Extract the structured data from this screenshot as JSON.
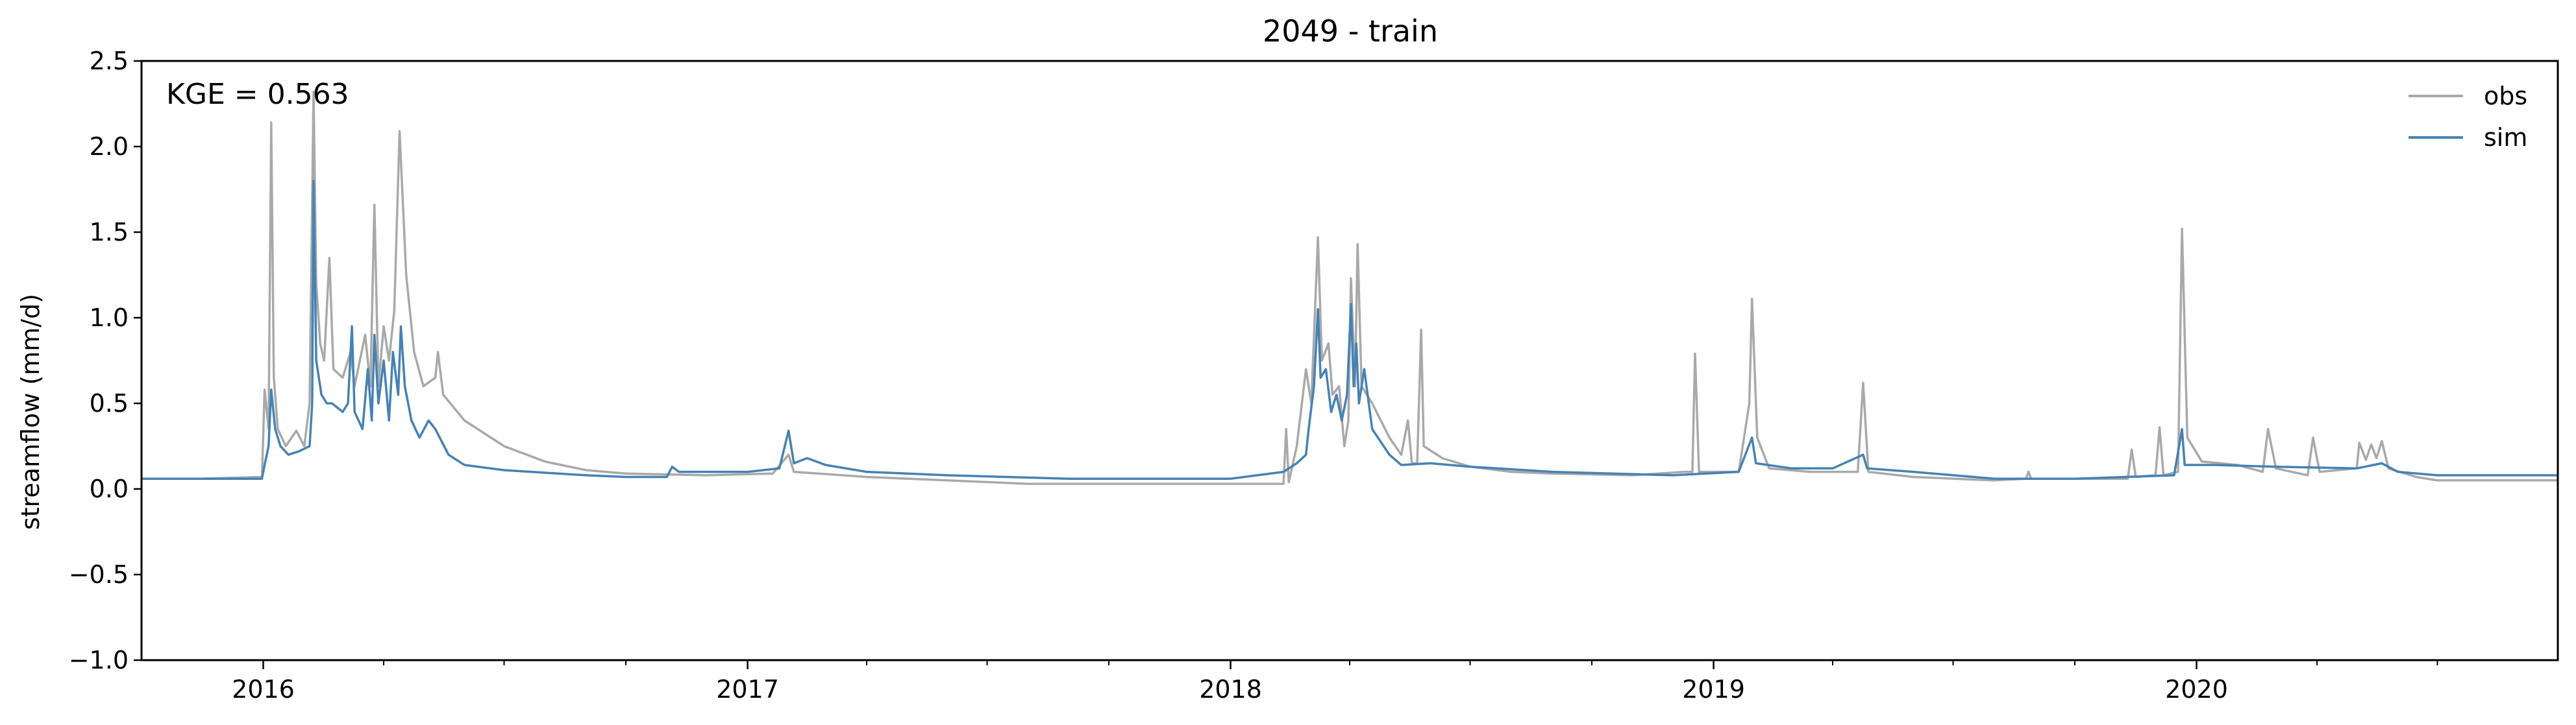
{
  "chart_data": {
    "type": "line",
    "title": "2049 - train",
    "xlabel": "",
    "ylabel": "streamflow (mm/d)",
    "annotation": "KGE = 0.563",
    "xlim": [
      "2015-10-01",
      "2020-09-30"
    ],
    "ylim": [
      -1.0,
      2.5
    ],
    "ytick_values": [
      -1.0,
      -0.5,
      0.0,
      0.5,
      1.0,
      1.5,
      2.0,
      2.5
    ],
    "ytick_labels": [
      "−1.0",
      "−0.5",
      "0.0",
      "0.5",
      "1.0",
      "1.5",
      "2.0",
      "2.5"
    ],
    "xtick_values": [
      "2016-01-01",
      "2017-01-01",
      "2018-01-01",
      "2019-01-01",
      "2020-01-01"
    ],
    "xtick_labels": [
      "2016",
      "2017",
      "2018",
      "2019",
      "2020"
    ],
    "minor_xticks": "quarterly",
    "grid": false,
    "legend_position": "top-right",
    "series": [
      {
        "name": "obs",
        "color": "#a9a9a9",
        "points": [
          [
            "2015-10-01",
            0.06
          ],
          [
            "2015-11-15",
            0.06
          ],
          [
            "2015-12-31",
            0.07
          ],
          [
            "2016-01-02",
            0.58
          ],
          [
            "2016-01-05",
            0.35
          ],
          [
            "2016-01-07",
            2.14
          ],
          [
            "2016-01-09",
            0.65
          ],
          [
            "2016-01-12",
            0.35
          ],
          [
            "2016-01-18",
            0.25
          ],
          [
            "2016-01-26",
            0.34
          ],
          [
            "2016-02-01",
            0.25
          ],
          [
            "2016-02-05",
            0.5
          ],
          [
            "2016-02-08",
            2.32
          ],
          [
            "2016-02-10",
            1.2
          ],
          [
            "2016-02-13",
            0.85
          ],
          [
            "2016-02-16",
            0.75
          ],
          [
            "2016-02-20",
            1.35
          ],
          [
            "2016-02-23",
            0.7
          ],
          [
            "2016-03-01",
            0.65
          ],
          [
            "2016-03-07",
            0.8
          ],
          [
            "2016-03-10",
            0.6
          ],
          [
            "2016-03-18",
            0.9
          ],
          [
            "2016-03-22",
            0.6
          ],
          [
            "2016-03-25",
            1.66
          ],
          [
            "2016-03-28",
            0.6
          ],
          [
            "2016-04-01",
            0.95
          ],
          [
            "2016-04-05",
            0.75
          ],
          [
            "2016-04-09",
            1.04
          ],
          [
            "2016-04-13",
            2.09
          ],
          [
            "2016-04-18",
            1.25
          ],
          [
            "2016-04-24",
            0.8
          ],
          [
            "2016-05-01",
            0.6
          ],
          [
            "2016-05-10",
            0.65
          ],
          [
            "2016-05-12",
            0.8
          ],
          [
            "2016-05-16",
            0.55
          ],
          [
            "2016-06-01",
            0.4
          ],
          [
            "2016-07-01",
            0.25
          ],
          [
            "2016-08-01",
            0.16
          ],
          [
            "2016-09-01",
            0.11
          ],
          [
            "2016-10-01",
            0.09
          ],
          [
            "2016-12-01",
            0.08
          ],
          [
            "2017-01-20",
            0.09
          ],
          [
            "2017-02-01",
            0.2
          ],
          [
            "2017-02-05",
            0.1
          ],
          [
            "2017-04-01",
            0.07
          ],
          [
            "2017-06-01",
            0.05
          ],
          [
            "2017-08-01",
            0.03
          ],
          [
            "2017-10-01",
            0.03
          ],
          [
            "2018-01-01",
            0.03
          ],
          [
            "2018-02-10",
            0.03
          ],
          [
            "2018-02-12",
            0.35
          ],
          [
            "2018-02-14",
            0.04
          ],
          [
            "2018-02-20",
            0.25
          ],
          [
            "2018-02-27",
            0.7
          ],
          [
            "2018-03-03",
            0.5
          ],
          [
            "2018-03-08",
            1.47
          ],
          [
            "2018-03-11",
            0.75
          ],
          [
            "2018-03-16",
            0.85
          ],
          [
            "2018-03-19",
            0.55
          ],
          [
            "2018-03-24",
            0.6
          ],
          [
            "2018-03-28",
            0.25
          ],
          [
            "2018-03-31",
            0.4
          ],
          [
            "2018-04-02",
            1.23
          ],
          [
            "2018-04-05",
            0.6
          ],
          [
            "2018-04-07",
            1.43
          ],
          [
            "2018-04-10",
            0.6
          ],
          [
            "2018-04-18",
            0.5
          ],
          [
            "2018-05-01",
            0.3
          ],
          [
            "2018-05-10",
            0.2
          ],
          [
            "2018-05-15",
            0.4
          ],
          [
            "2018-05-18",
            0.15
          ],
          [
            "2018-05-22",
            0.15
          ],
          [
            "2018-05-25",
            0.93
          ],
          [
            "2018-05-27",
            0.25
          ],
          [
            "2018-06-10",
            0.18
          ],
          [
            "2018-07-01",
            0.13
          ],
          [
            "2018-08-01",
            0.1
          ],
          [
            "2018-09-01",
            0.09
          ],
          [
            "2018-11-01",
            0.08
          ],
          [
            "2018-12-10",
            0.1
          ],
          [
            "2018-12-16",
            0.1
          ],
          [
            "2018-12-18",
            0.79
          ],
          [
            "2018-12-21",
            0.1
          ],
          [
            "2019-01-20",
            0.1
          ],
          [
            "2019-01-28",
            0.5
          ],
          [
            "2019-01-30",
            1.11
          ],
          [
            "2019-02-03",
            0.3
          ],
          [
            "2019-02-12",
            0.12
          ],
          [
            "2019-03-15",
            0.1
          ],
          [
            "2019-04-20",
            0.1
          ],
          [
            "2019-04-24",
            0.62
          ],
          [
            "2019-04-28",
            0.1
          ],
          [
            "2019-06-01",
            0.07
          ],
          [
            "2019-08-01",
            0.05
          ],
          [
            "2019-08-25",
            0.06
          ],
          [
            "2019-08-27",
            0.1
          ],
          [
            "2019-08-29",
            0.06
          ],
          [
            "2019-10-01",
            0.06
          ],
          [
            "2019-11-10",
            0.06
          ],
          [
            "2019-11-13",
            0.23
          ],
          [
            "2019-11-16",
            0.07
          ],
          [
            "2019-12-01",
            0.08
          ],
          [
            "2019-12-04",
            0.36
          ],
          [
            "2019-12-07",
            0.08
          ],
          [
            "2019-12-18",
            0.1
          ],
          [
            "2019-12-21",
            1.52
          ],
          [
            "2019-12-25",
            0.3
          ],
          [
            "2020-01-05",
            0.16
          ],
          [
            "2020-02-01",
            0.14
          ],
          [
            "2020-02-20",
            0.1
          ],
          [
            "2020-02-24",
            0.35
          ],
          [
            "2020-03-01",
            0.12
          ],
          [
            "2020-03-25",
            0.08
          ],
          [
            "2020-03-29",
            0.3
          ],
          [
            "2020-04-03",
            0.1
          ],
          [
            "2020-05-01",
            0.12
          ],
          [
            "2020-05-03",
            0.27
          ],
          [
            "2020-05-08",
            0.17
          ],
          [
            "2020-05-12",
            0.26
          ],
          [
            "2020-05-16",
            0.18
          ],
          [
            "2020-05-20",
            0.28
          ],
          [
            "2020-05-25",
            0.12
          ],
          [
            "2020-06-15",
            0.07
          ],
          [
            "2020-07-01",
            0.05
          ],
          [
            "2020-09-30",
            0.05
          ]
        ]
      },
      {
        "name": "sim",
        "color": "#4682b4",
        "points": [
          [
            "2015-10-01",
            0.06
          ],
          [
            "2015-11-15",
            0.06
          ],
          [
            "2015-12-31",
            0.06
          ],
          [
            "2016-01-02",
            0.14
          ],
          [
            "2016-01-05",
            0.25
          ],
          [
            "2016-01-07",
            0.58
          ],
          [
            "2016-01-10",
            0.35
          ],
          [
            "2016-01-14",
            0.25
          ],
          [
            "2016-01-20",
            0.2
          ],
          [
            "2016-01-28",
            0.22
          ],
          [
            "2016-02-05",
            0.25
          ],
          [
            "2016-02-07",
            0.5
          ],
          [
            "2016-02-08",
            1.8
          ],
          [
            "2016-02-10",
            0.75
          ],
          [
            "2016-02-14",
            0.55
          ],
          [
            "2016-02-18",
            0.5
          ],
          [
            "2016-02-22",
            0.5
          ],
          [
            "2016-03-01",
            0.45
          ],
          [
            "2016-03-05",
            0.5
          ],
          [
            "2016-03-08",
            0.95
          ],
          [
            "2016-03-10",
            0.45
          ],
          [
            "2016-03-16",
            0.35
          ],
          [
            "2016-03-20",
            0.7
          ],
          [
            "2016-03-23",
            0.4
          ],
          [
            "2016-03-25",
            0.9
          ],
          [
            "2016-03-28",
            0.5
          ],
          [
            "2016-04-01",
            0.75
          ],
          [
            "2016-04-05",
            0.4
          ],
          [
            "2016-04-08",
            0.8
          ],
          [
            "2016-04-12",
            0.55
          ],
          [
            "2016-04-14",
            0.95
          ],
          [
            "2016-04-17",
            0.6
          ],
          [
            "2016-04-22",
            0.4
          ],
          [
            "2016-04-28",
            0.3
          ],
          [
            "2016-05-05",
            0.4
          ],
          [
            "2016-05-10",
            0.35
          ],
          [
            "2016-05-20",
            0.2
          ],
          [
            "2016-06-01",
            0.14
          ],
          [
            "2016-07-01",
            0.11
          ],
          [
            "2016-09-01",
            0.08
          ],
          [
            "2016-10-01",
            0.07
          ],
          [
            "2016-11-01",
            0.07
          ],
          [
            "2016-11-05",
            0.13
          ],
          [
            "2016-11-10",
            0.1
          ],
          [
            "2017-01-01",
            0.1
          ],
          [
            "2017-01-25",
            0.12
          ],
          [
            "2017-02-01",
            0.34
          ],
          [
            "2017-02-05",
            0.15
          ],
          [
            "2017-02-15",
            0.18
          ],
          [
            "2017-03-01",
            0.14
          ],
          [
            "2017-04-01",
            0.1
          ],
          [
            "2017-06-01",
            0.08
          ],
          [
            "2017-09-01",
            0.06
          ],
          [
            "2018-01-01",
            0.06
          ],
          [
            "2018-02-10",
            0.1
          ],
          [
            "2018-02-20",
            0.15
          ],
          [
            "2018-02-27",
            0.2
          ],
          [
            "2018-03-01",
            0.35
          ],
          [
            "2018-03-05",
            0.6
          ],
          [
            "2018-03-08",
            1.05
          ],
          [
            "2018-03-10",
            0.65
          ],
          [
            "2018-03-14",
            0.7
          ],
          [
            "2018-03-18",
            0.45
          ],
          [
            "2018-03-22",
            0.55
          ],
          [
            "2018-03-26",
            0.4
          ],
          [
            "2018-03-30",
            0.55
          ],
          [
            "2018-04-02",
            1.08
          ],
          [
            "2018-04-04",
            0.6
          ],
          [
            "2018-04-06",
            0.85
          ],
          [
            "2018-04-08",
            0.5
          ],
          [
            "2018-04-12",
            0.7
          ],
          [
            "2018-04-18",
            0.35
          ],
          [
            "2018-05-01",
            0.2
          ],
          [
            "2018-05-10",
            0.14
          ],
          [
            "2018-06-01",
            0.15
          ],
          [
            "2018-07-01",
            0.13
          ],
          [
            "2018-09-01",
            0.1
          ],
          [
            "2018-12-01",
            0.08
          ],
          [
            "2019-01-20",
            0.1
          ],
          [
            "2019-01-30",
            0.3
          ],
          [
            "2019-02-02",
            0.15
          ],
          [
            "2019-03-01",
            0.12
          ],
          [
            "2019-04-01",
            0.12
          ],
          [
            "2019-04-24",
            0.2
          ],
          [
            "2019-04-27",
            0.12
          ],
          [
            "2019-06-01",
            0.1
          ],
          [
            "2019-08-01",
            0.06
          ],
          [
            "2019-10-01",
            0.06
          ],
          [
            "2019-12-15",
            0.08
          ],
          [
            "2019-12-21",
            0.35
          ],
          [
            "2019-12-23",
            0.14
          ],
          [
            "2020-01-15",
            0.14
          ],
          [
            "2020-03-01",
            0.13
          ],
          [
            "2020-05-01",
            0.12
          ],
          [
            "2020-05-20",
            0.15
          ],
          [
            "2020-06-01",
            0.1
          ],
          [
            "2020-07-01",
            0.08
          ],
          [
            "2020-09-30",
            0.08
          ]
        ]
      }
    ]
  }
}
